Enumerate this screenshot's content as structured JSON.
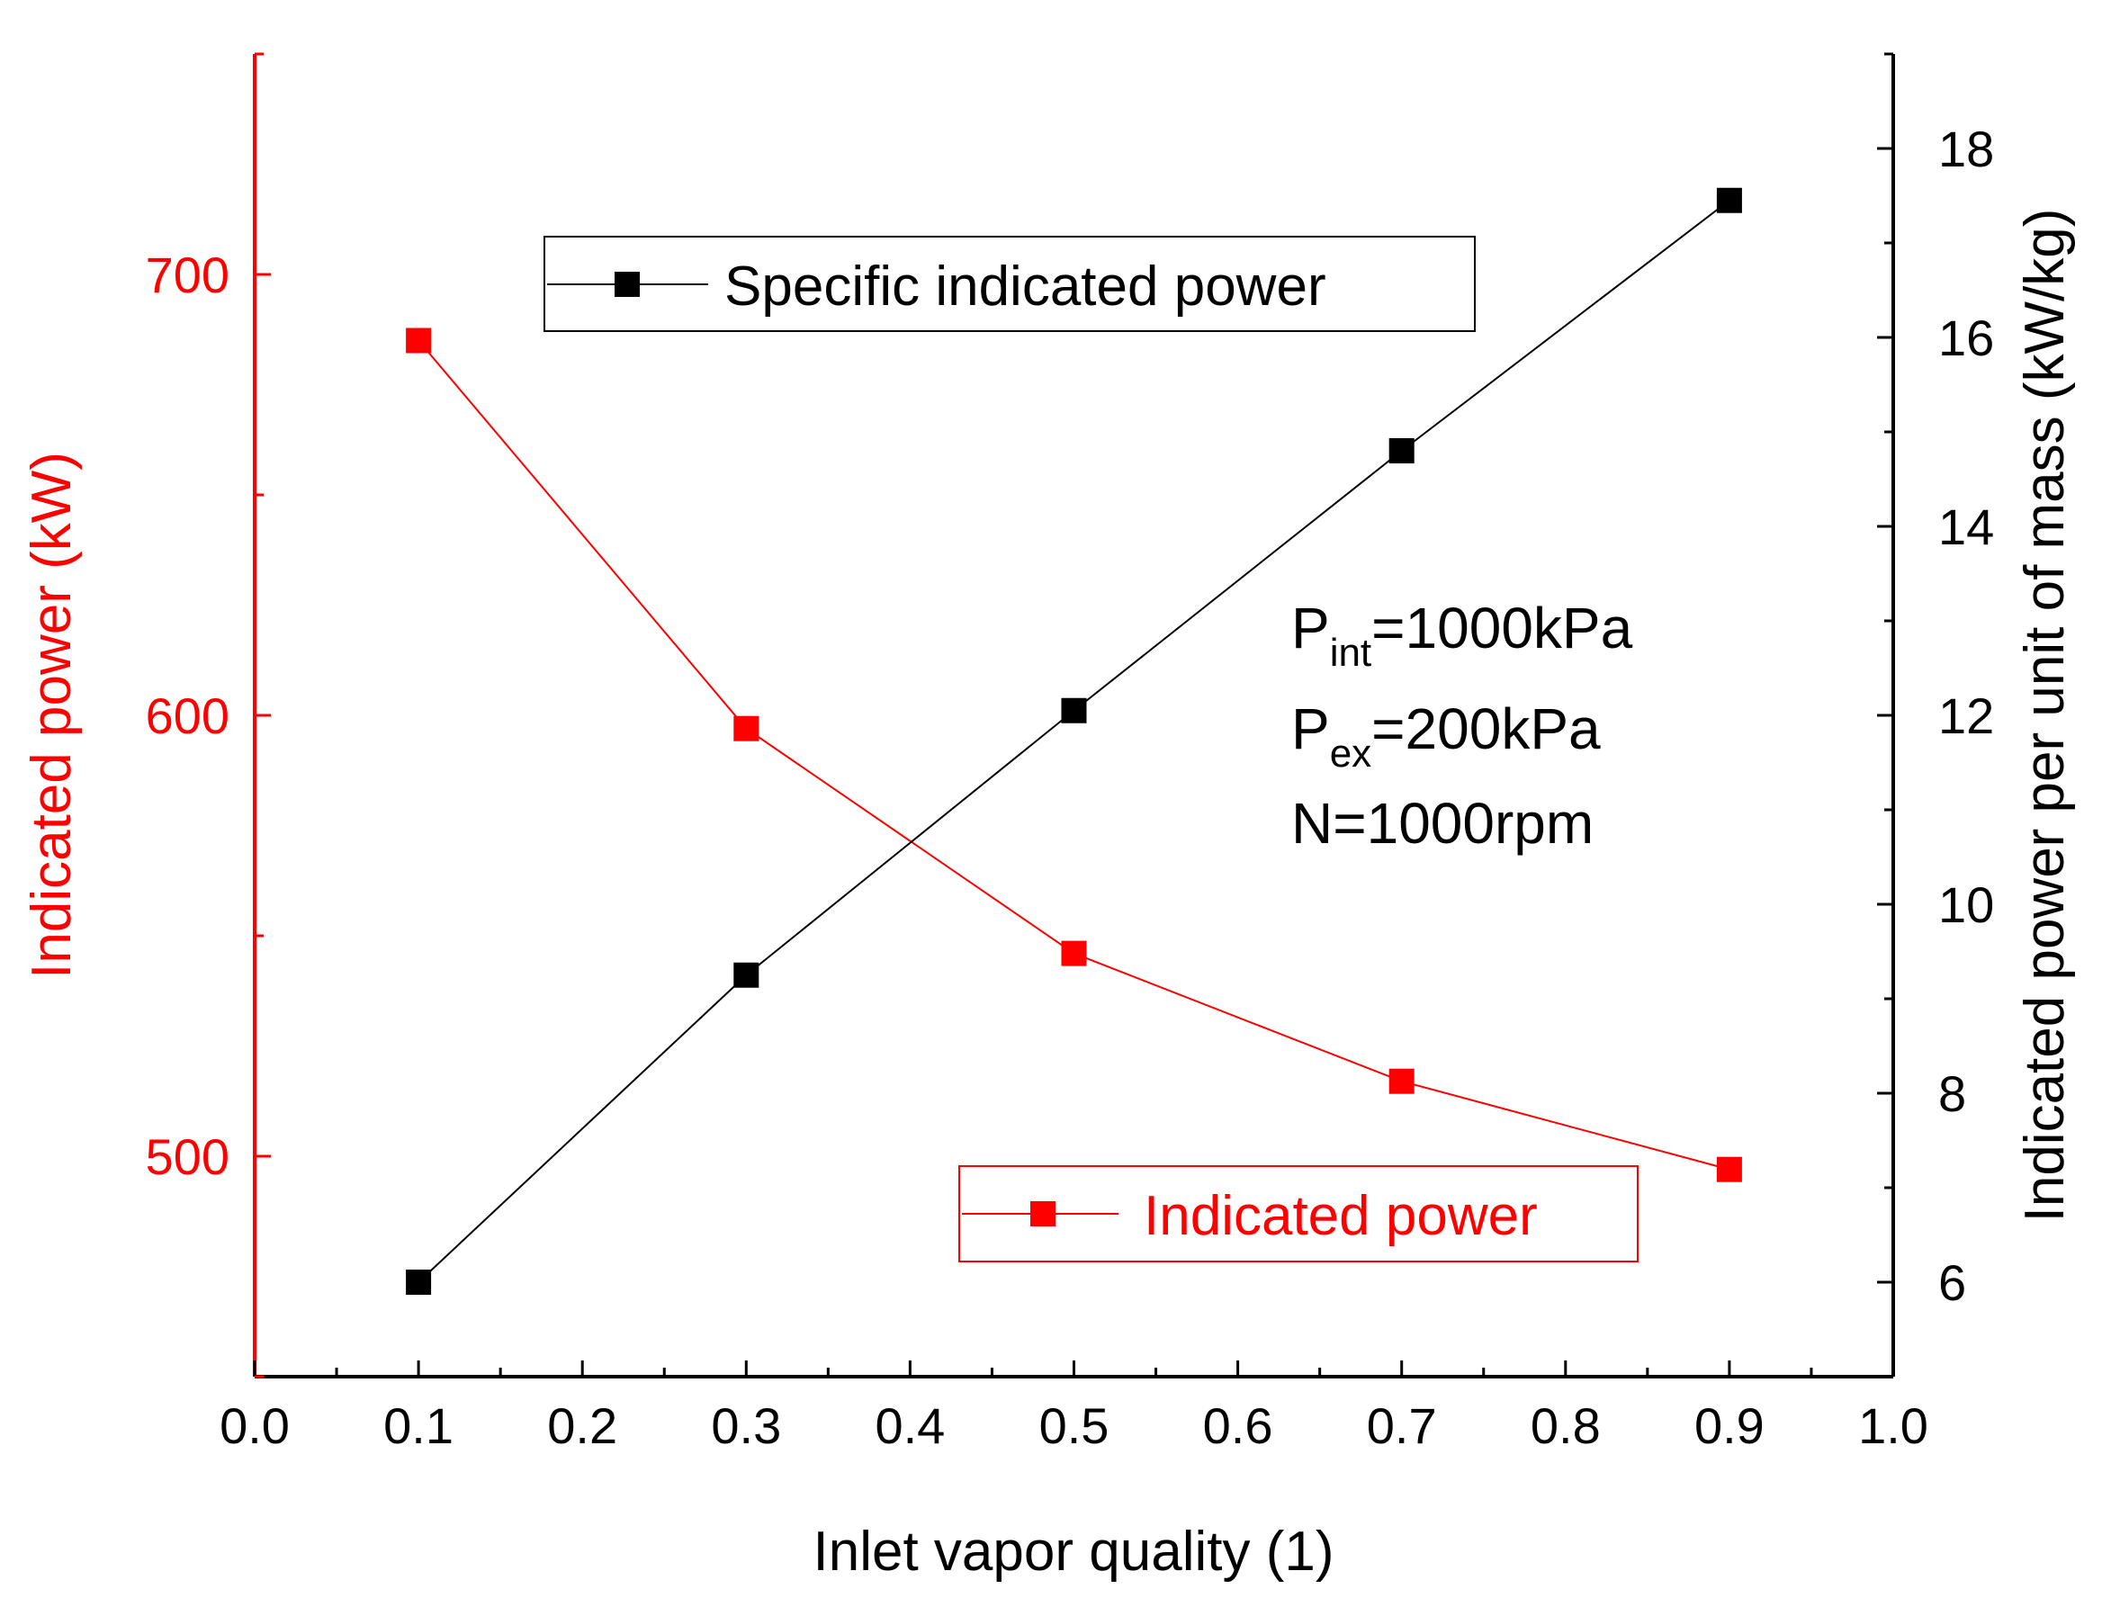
{
  "chart_data": {
    "type": "line",
    "x_label": "Inlet vapor quality (1)",
    "xlim": [
      0.0,
      1.0
    ],
    "x_ticks": [
      "0.0",
      "0.1",
      "0.2",
      "0.3",
      "0.4",
      "0.5",
      "0.6",
      "0.7",
      "0.8",
      "0.9",
      "1.0"
    ],
    "y_left": {
      "label": "Indicated power (kW)",
      "range": [
        450,
        750
      ],
      "ticks": [
        "500",
        "600",
        "700"
      ],
      "color": "#ff0000"
    },
    "y_right": {
      "label": "Indicated power per unit of mass (kW/kg)",
      "range": [
        5,
        19
      ],
      "ticks": [
        "6",
        "8",
        "10",
        "12",
        "14",
        "16",
        "18"
      ],
      "color": "#000000"
    },
    "x": [
      0.1,
      0.3,
      0.5,
      0.7,
      0.9
    ],
    "series": [
      {
        "name": "Indicated power",
        "axis": "left",
        "color": "#ff0000",
        "marker": "square",
        "values": [
          685,
          597,
          546,
          517,
          497
        ]
      },
      {
        "name": "Specific indicated power",
        "axis": "right",
        "color": "#000000",
        "marker": "square",
        "values": [
          6.0,
          9.25,
          12.05,
          14.8,
          17.45
        ]
      }
    ],
    "legends": {
      "specific": "Specific indicated power",
      "indicated": "Indicated power"
    },
    "conditions": {
      "p_int_main": "P",
      "p_int_sub": "int",
      "p_int_value": "=1000kPa",
      "p_ex_main": "P",
      "p_ex_sub": "ex",
      "p_ex_value": "=200kPa",
      "speed": "N=1000rpm"
    }
  }
}
